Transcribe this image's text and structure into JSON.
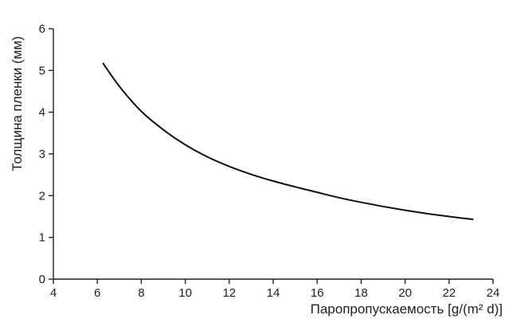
{
  "chart_data": {
    "type": "line",
    "title": "",
    "xlabel": "Паропропускаемость [g/(m² d)]",
    "ylabel": "Толщина пленки (мм)",
    "xlim": [
      4,
      24
    ],
    "ylim": [
      0,
      6
    ],
    "xticks": [
      4,
      6,
      8,
      10,
      12,
      14,
      16,
      18,
      20,
      22,
      24
    ],
    "yticks": [
      0,
      1,
      2,
      3,
      4,
      5,
      6
    ],
    "grid": false,
    "legend": "none",
    "series": [
      {
        "color": "#111111",
        "x": [
          6.25,
          7,
          8,
          9,
          10,
          11,
          12,
          13,
          14,
          15,
          16,
          17,
          18,
          19,
          20,
          21,
          22,
          23.1
        ],
        "y": [
          5.18,
          4.62,
          4.02,
          3.58,
          3.22,
          2.93,
          2.7,
          2.51,
          2.35,
          2.21,
          2.08,
          1.95,
          1.84,
          1.74,
          1.65,
          1.57,
          1.5,
          1.43
        ]
      }
    ]
  }
}
